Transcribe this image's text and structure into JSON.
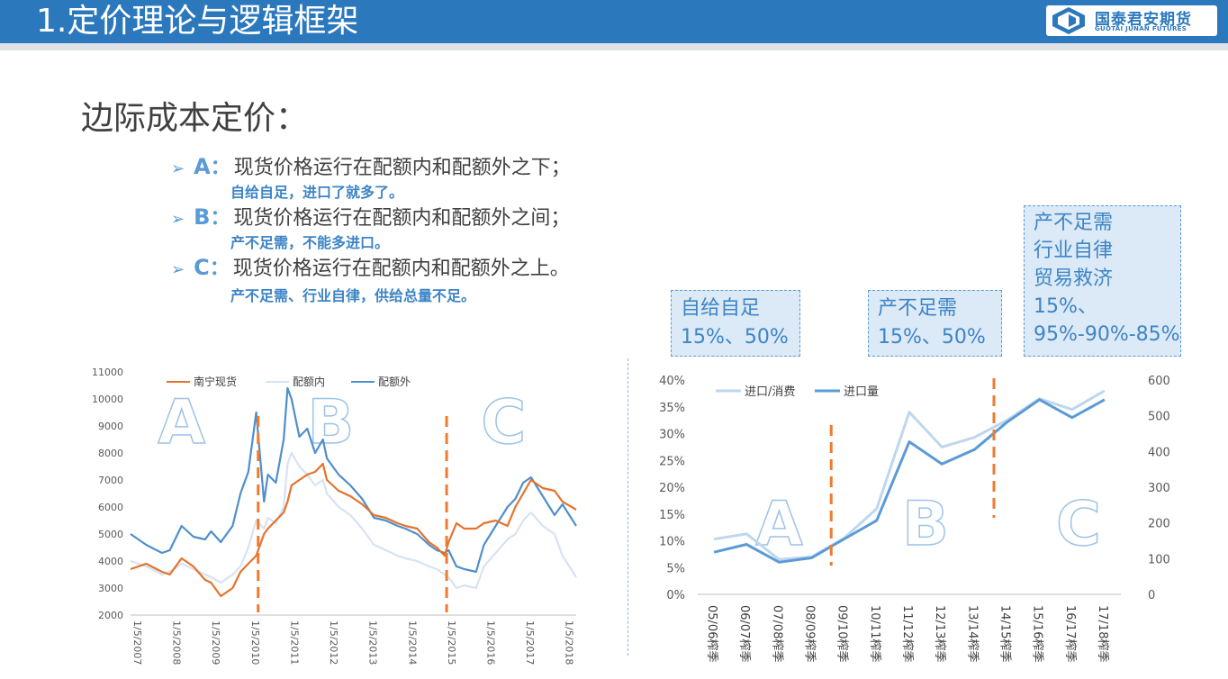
{
  "header": {
    "title": "1.定价理论与逻辑框架",
    "logo_cn": "国泰君安期货",
    "logo_en": "GUOTAI JUNAN FUTURES",
    "bg_color": "#2b78bd"
  },
  "section_heading": "边际成本定价：",
  "bullets": [
    {
      "letter": "A",
      "colon": "：",
      "text": "现货价格运行在配额内和配额外之下；",
      "sub": "自给自足，进口了就多了。"
    },
    {
      "letter": "B",
      "colon": "：",
      "text": "现货价格运行在配额内和配额外之间；",
      "sub": "产不足需，不能多进口。"
    },
    {
      "letter": "C",
      "colon": "：",
      "text": "现货价格运行在配额内和配额外之上。",
      "sub": "产不足需、行业自律，供给总量不足。"
    }
  ],
  "notes": [
    {
      "lines": [
        "自给自足",
        "15%、50%"
      ]
    },
    {
      "lines": [
        "产不足需",
        "15%、50%"
      ]
    },
    {
      "lines": [
        "产不足需",
        "行业自律",
        "贸易救济",
        "15%、",
        "95%-90%-85%"
      ]
    }
  ],
  "chart_data": [
    {
      "type": "line",
      "ylim": [
        2000,
        11000
      ],
      "y_ticks": [
        "11000",
        "10000",
        "9000",
        "8000",
        "7000",
        "6000",
        "5000",
        "4000",
        "3000",
        "2000"
      ],
      "x_ticks": [
        "1/5/2007",
        "1/5/2008",
        "1/5/2009",
        "1/5/2010",
        "1/5/2011",
        "1/5/2012",
        "1/5/2013",
        "1/5/2014",
        "1/5/2015",
        "1/5/2016",
        "1/5/2017",
        "1/5/2018"
      ],
      "x_range": [
        2007.0,
        2018.35
      ],
      "legend": [
        "南宁现货",
        "配额内",
        "配额外"
      ],
      "legend_position": "top",
      "region_labels": [
        "A",
        "B",
        "C"
      ],
      "dividers_x": [
        2010.25,
        2015.05
      ],
      "colors": {
        "spot": "#e5732b",
        "in_quota": "#d6e3f3",
        "out_quota": "#4f8fcc",
        "divider": "#ee7b30",
        "region": "#9dc3e6"
      },
      "series": [
        {
          "name": "南宁现货",
          "x": [
            2007.0,
            2007.4,
            2007.8,
            2008.0,
            2008.3,
            2008.6,
            2008.9,
            2009.05,
            2009.3,
            2009.6,
            2009.8,
            2010.0,
            2010.2,
            2010.4,
            2010.5,
            2010.7,
            2010.9,
            2011.0,
            2011.1,
            2011.3,
            2011.5,
            2011.7,
            2011.9,
            2012.0,
            2012.3,
            2012.6,
            2012.9,
            2013.2,
            2013.5,
            2013.8,
            2014.0,
            2014.3,
            2014.6,
            2014.8,
            2015.0,
            2015.1,
            2015.3,
            2015.5,
            2015.8,
            2016.0,
            2016.3,
            2016.6,
            2016.8,
            2017.0,
            2017.2,
            2017.5,
            2017.8,
            2018.0,
            2018.35
          ],
          "values": [
            3700,
            3900,
            3600,
            3500,
            4100,
            3800,
            3300,
            3200,
            2700,
            3000,
            3600,
            3900,
            4200,
            5000,
            5200,
            5500,
            5800,
            6200,
            6800,
            7000,
            7200,
            7300,
            7600,
            7000,
            6600,
            6400,
            6100,
            5700,
            5600,
            5400,
            5300,
            5200,
            4700,
            4500,
            4200,
            4700,
            5400,
            5200,
            5200,
            5400,
            5500,
            5300,
            6000,
            6500,
            7000,
            6700,
            6600,
            6200,
            5900
          ]
        },
        {
          "name": "配额内",
          "x": [
            2007.0,
            2007.4,
            2007.8,
            2008.0,
            2008.3,
            2008.6,
            2008.9,
            2009.05,
            2009.3,
            2009.6,
            2009.8,
            2010.0,
            2010.2,
            2010.4,
            2010.5,
            2010.7,
            2010.9,
            2011.0,
            2011.1,
            2011.3,
            2011.5,
            2011.7,
            2011.9,
            2012.0,
            2012.3,
            2012.6,
            2012.9,
            2013.2,
            2013.5,
            2013.8,
            2014.0,
            2014.3,
            2014.6,
            2014.8,
            2015.0,
            2015.1,
            2015.3,
            2015.5,
            2015.8,
            2016.0,
            2016.3,
            2016.6,
            2016.8,
            2017.0,
            2017.2,
            2017.5,
            2017.8,
            2018.0,
            2018.35
          ],
          "values": [
            4000,
            3800,
            3500,
            3600,
            3900,
            3700,
            3500,
            3400,
            3200,
            3500,
            3800,
            4500,
            5500,
            5200,
            5600,
            5400,
            6000,
            7600,
            8000,
            7500,
            7200,
            6800,
            7000,
            6500,
            6000,
            5700,
            5200,
            4600,
            4400,
            4200,
            4100,
            4000,
            3800,
            3700,
            3500,
            3400,
            3000,
            3100,
            3000,
            3800,
            4300,
            4800,
            5000,
            5500,
            5800,
            5300,
            5000,
            4200,
            3400
          ]
        },
        {
          "name": "配额外",
          "x": [
            2007.0,
            2007.4,
            2007.8,
            2008.0,
            2008.3,
            2008.6,
            2008.9,
            2009.05,
            2009.3,
            2009.6,
            2009.8,
            2010.0,
            2010.2,
            2010.4,
            2010.5,
            2010.7,
            2010.9,
            2011.0,
            2011.1,
            2011.3,
            2011.5,
            2011.7,
            2011.9,
            2012.0,
            2012.3,
            2012.6,
            2012.9,
            2013.2,
            2013.5,
            2013.8,
            2014.0,
            2014.3,
            2014.6,
            2014.8,
            2015.0,
            2015.1,
            2015.3,
            2015.5,
            2015.8,
            2016.0,
            2016.3,
            2016.6,
            2016.8,
            2017.0,
            2017.2,
            2017.5,
            2017.8,
            2018.0,
            2018.35
          ],
          "values": [
            5000,
            4600,
            4300,
            4400,
            5300,
            4900,
            4800,
            5100,
            4700,
            5300,
            6500,
            7300,
            9500,
            6200,
            7200,
            6900,
            8500,
            10400,
            10000,
            8600,
            8900,
            8000,
            8500,
            7800,
            7200,
            6800,
            6300,
            5600,
            5500,
            5300,
            5200,
            5000,
            4600,
            4400,
            4300,
            4400,
            3800,
            3700,
            3600,
            4600,
            5300,
            6000,
            6300,
            6900,
            7100,
            6400,
            5700,
            6100,
            5300
          ]
        }
      ]
    },
    {
      "type": "line",
      "categories": [
        "05/06榨季",
        "06/07榨季",
        "07/08榨季",
        "08/09榨季",
        "09/10榨季",
        "10/11榨季",
        "11/12榨季",
        "12/13榨季",
        "13/14榨季",
        "14/15榨季",
        "15/16榨季",
        "16/17榨季",
        "17/18榨季"
      ],
      "ylim_left": [
        0,
        40
      ],
      "ylim_right": [
        0,
        600
      ],
      "y_ticks_left": [
        "40%",
        "35%",
        "30%",
        "25%",
        "20%",
        "15%",
        "10%",
        "5%",
        "0%"
      ],
      "y_ticks_right": [
        "600",
        "500",
        "400",
        "300",
        "200",
        "100",
        "0"
      ],
      "legend": [
        "进口/消费",
        "进口量"
      ],
      "legend_position": "top-left",
      "region_labels": [
        "A",
        "B",
        "C"
      ],
      "dividers_category_gap": [
        4.1,
        9.1
      ],
      "colors": {
        "ratio": "#bdd7ee",
        "volume": "#5b9bd5",
        "divider": "#ee7b30"
      },
      "series": [
        {
          "name": "进口/消费",
          "axis": "left",
          "values": [
            10.3,
            11.3,
            6.5,
            7.0,
            10.5,
            16.0,
            34.0,
            27.5,
            29.3,
            32.5,
            36.5,
            34.5,
            38.0
          ]
        },
        {
          "name": "进口量",
          "axis": "right",
          "values": [
            118,
            140,
            90,
            102,
            155,
            207,
            427,
            365,
            405,
            482,
            545,
            495,
            545
          ]
        }
      ]
    }
  ]
}
